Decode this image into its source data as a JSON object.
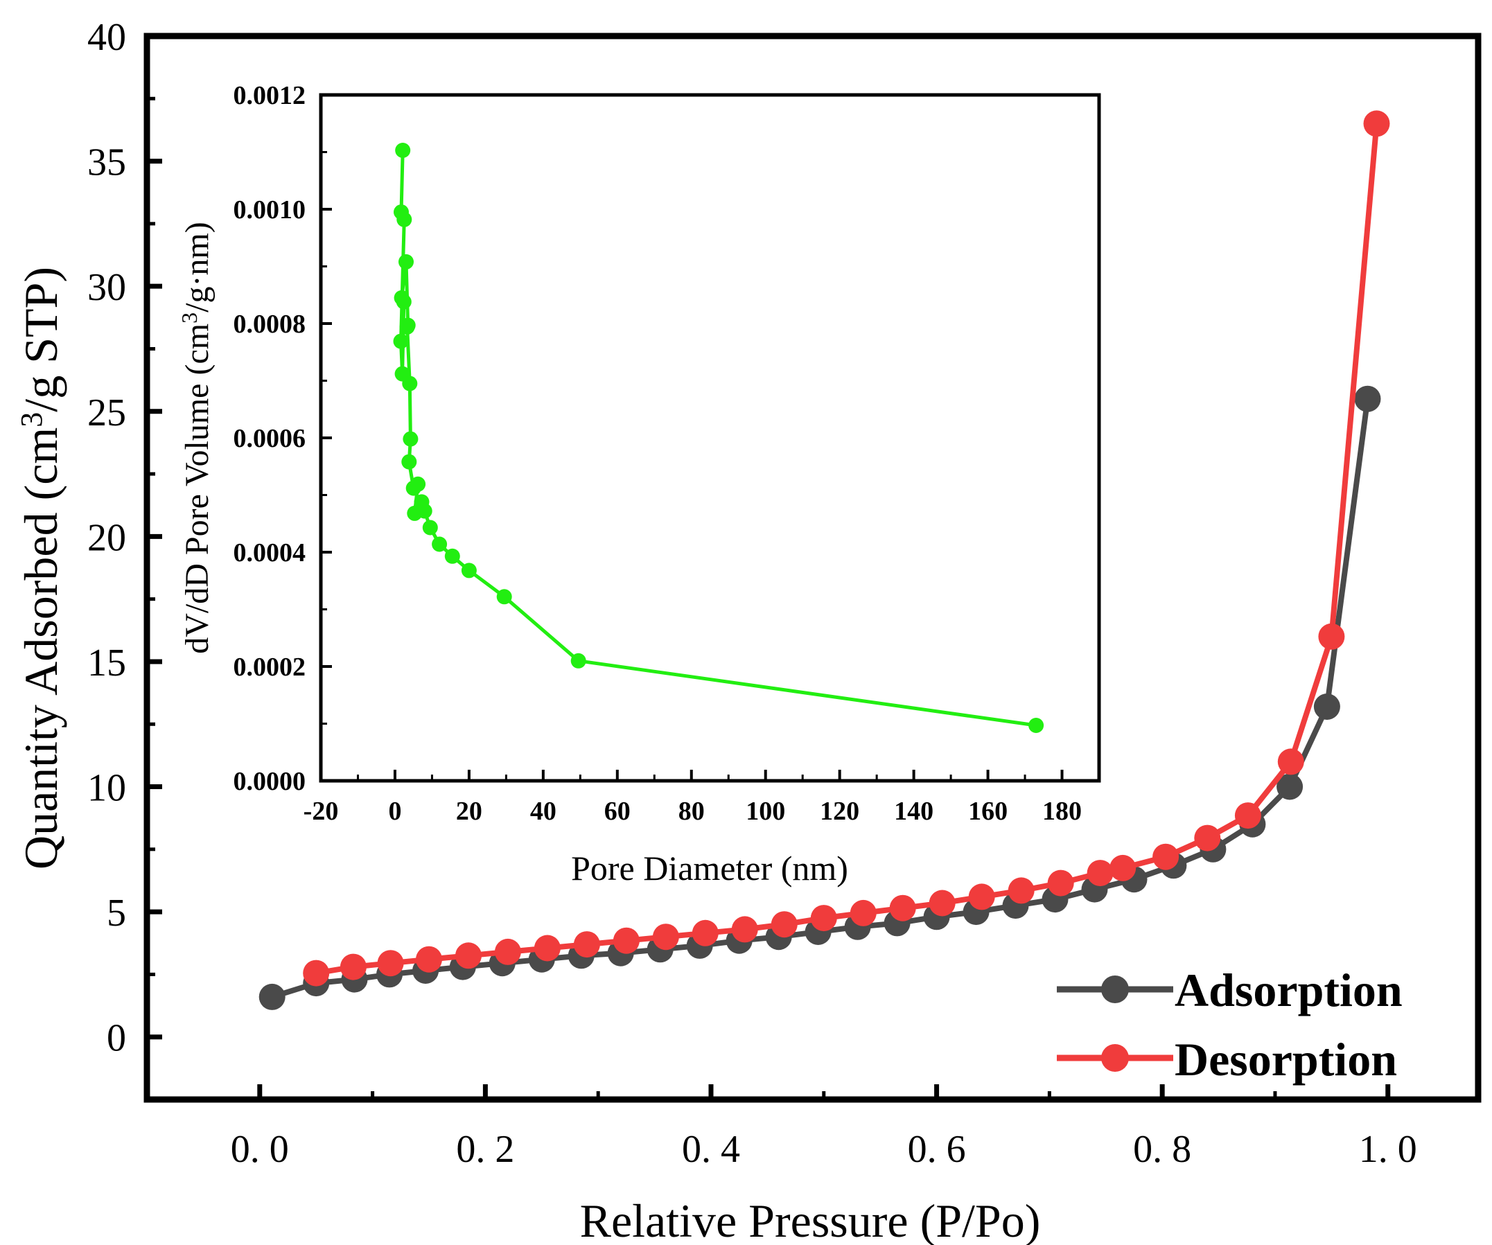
{
  "colors": {
    "adsorption": "#4a4a4a",
    "desorption": "#f03c3c",
    "inset": "#22ee11",
    "axis": "#000000"
  },
  "chart_data": [
    {
      "type": "line",
      "xlabel": "Relative Pressure (P/Po)",
      "ylabel_main": "Quantity Adsorbed (cm",
      "ylabel_sup": "3",
      "ylabel_tail": "/g STP)",
      "xlim": [
        -0.1,
        1.08
      ],
      "ylim": [
        -2.5,
        40
      ],
      "xticks": [
        0.0,
        0.2,
        0.4,
        0.6,
        0.8,
        1.0
      ],
      "xtick_labels": [
        "0. 0",
        "0. 2",
        "0. 4",
        "0. 6",
        "0. 8",
        "1. 0"
      ],
      "yticks": [
        0,
        5,
        10,
        15,
        20,
        25,
        30,
        35,
        40
      ],
      "ytick_labels": [
        "0",
        "5",
        "10",
        "15",
        "20",
        "25",
        "30",
        "35",
        "40"
      ],
      "legend_position": "bottom-right",
      "series": [
        {
          "name": "Adsorption",
          "x": [
            0.011,
            0.05,
            0.084,
            0.115,
            0.147,
            0.18,
            0.215,
            0.25,
            0.285,
            0.32,
            0.355,
            0.39,
            0.425,
            0.46,
            0.495,
            0.53,
            0.565,
            0.6,
            0.635,
            0.67,
            0.705,
            0.74,
            0.775,
            0.81,
            0.845,
            0.88,
            0.913,
            0.946,
            0.982
          ],
          "y": [
            1.6,
            2.15,
            2.3,
            2.5,
            2.65,
            2.8,
            2.95,
            3.1,
            3.25,
            3.35,
            3.5,
            3.65,
            3.85,
            4.0,
            4.2,
            4.4,
            4.55,
            4.8,
            5.0,
            5.25,
            5.5,
            5.9,
            6.3,
            6.85,
            7.5,
            8.5,
            10.0,
            13.2,
            25.5
          ]
        },
        {
          "name": "Desorption",
          "x": [
            0.99,
            0.95,
            0.914,
            0.876,
            0.84,
            0.803,
            0.765,
            0.745,
            0.71,
            0.675,
            0.64,
            0.605,
            0.57,
            0.535,
            0.5,
            0.465,
            0.43,
            0.395,
            0.36,
            0.325,
            0.29,
            0.255,
            0.22,
            0.185,
            0.15,
            0.116,
            0.083,
            0.05
          ],
          "y": [
            36.5,
            16.0,
            11.0,
            8.85,
            7.95,
            7.2,
            6.75,
            6.55,
            6.15,
            5.85,
            5.6,
            5.35,
            5.15,
            4.95,
            4.75,
            4.5,
            4.3,
            4.15,
            4.0,
            3.85,
            3.7,
            3.55,
            3.4,
            3.25,
            3.1,
            2.95,
            2.8,
            2.55
          ]
        }
      ]
    },
    {
      "type": "line",
      "xlabel": "Pore Diameter (nm)",
      "ylabel_main": "dV/dD Pore Volume (cm",
      "ylabel_sup": "3",
      "ylabel_tail": "/g·nm)",
      "xlim": [
        -20,
        190
      ],
      "ylim": [
        0,
        0.0012
      ],
      "xticks": [
        -20,
        0,
        20,
        40,
        60,
        80,
        100,
        120,
        140,
        160,
        180
      ],
      "xtick_labels": [
        "-20",
        "0",
        "20",
        "40",
        "60",
        "80",
        "100",
        "120",
        "140",
        "160",
        "180"
      ],
      "yticks": [
        0,
        0.0002,
        0.0004,
        0.0006,
        0.0008,
        0.001,
        0.0012
      ],
      "ytick_labels": [
        "0.0000",
        "0.0002",
        "0.0004",
        "0.0006",
        "0.0008",
        "0.0010",
        "0.0012"
      ],
      "series": [
        {
          "x": [
            2.1,
            1.7,
            2.5,
            1.6,
            2.0,
            2.4,
            1.8,
            3.0,
            3.5,
            3.3,
            4.0,
            4.2,
            3.8,
            5.0,
            6.2,
            5.3,
            7.2,
            8.0,
            9.5,
            12.0,
            15.5,
            20.0,
            29.5,
            49.5,
            173.0
          ],
          "y": [
            0.001103,
            0.000995,
            0.000982,
            0.000769,
            0.000712,
            0.000838,
            0.000845,
            0.000908,
            0.000797,
            0.000794,
            0.000695,
            0.000598,
            0.000558,
            0.000512,
            0.000519,
            0.000468,
            0.000488,
            0.000472,
            0.000443,
            0.000414,
            0.000393,
            0.000368,
            0.000322,
            0.00021,
            9.7e-05
          ]
        }
      ]
    }
  ]
}
